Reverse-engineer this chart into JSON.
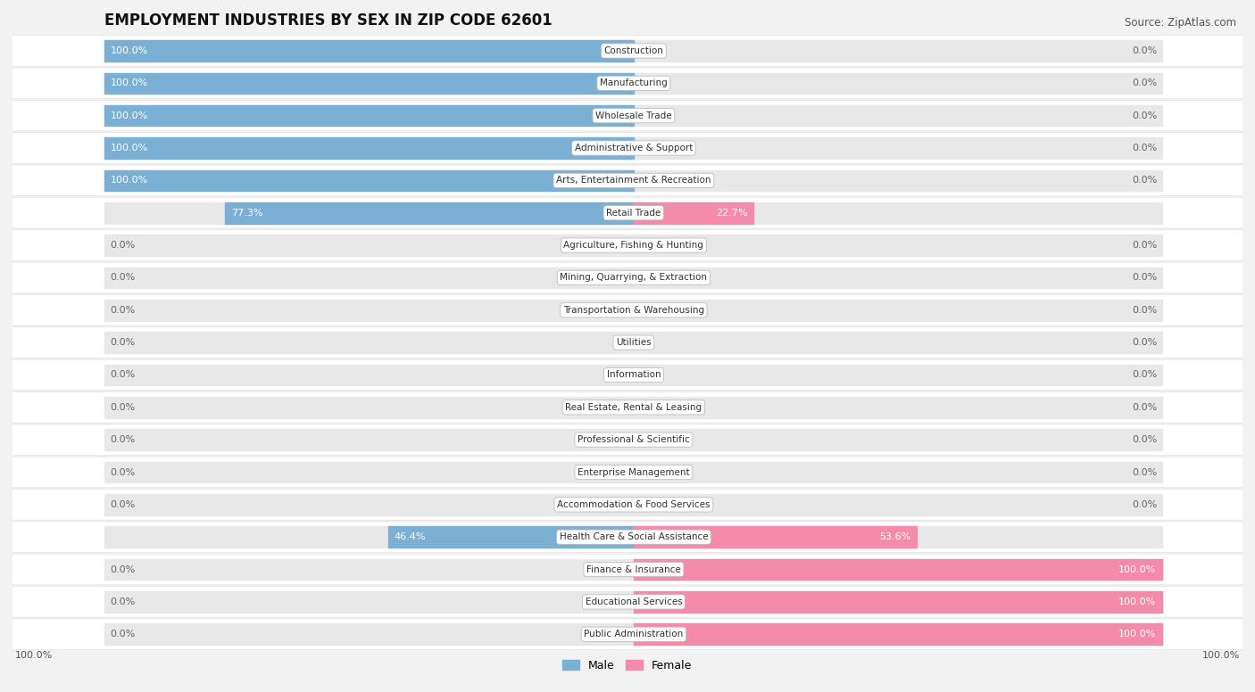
{
  "title": "EMPLOYMENT INDUSTRIES BY SEX IN ZIP CODE 62601",
  "source": "Source: ZipAtlas.com",
  "industries": [
    "Construction",
    "Manufacturing",
    "Wholesale Trade",
    "Administrative & Support",
    "Arts, Entertainment & Recreation",
    "Retail Trade",
    "Agriculture, Fishing & Hunting",
    "Mining, Quarrying, & Extraction",
    "Transportation & Warehousing",
    "Utilities",
    "Information",
    "Real Estate, Rental & Leasing",
    "Professional & Scientific",
    "Enterprise Management",
    "Accommodation & Food Services",
    "Health Care & Social Assistance",
    "Finance & Insurance",
    "Educational Services",
    "Public Administration"
  ],
  "male_pct": [
    100.0,
    100.0,
    100.0,
    100.0,
    100.0,
    77.3,
    0.0,
    0.0,
    0.0,
    0.0,
    0.0,
    0.0,
    0.0,
    0.0,
    0.0,
    46.4,
    0.0,
    0.0,
    0.0
  ],
  "female_pct": [
    0.0,
    0.0,
    0.0,
    0.0,
    0.0,
    22.7,
    0.0,
    0.0,
    0.0,
    0.0,
    0.0,
    0.0,
    0.0,
    0.0,
    0.0,
    53.6,
    100.0,
    100.0,
    100.0
  ],
  "male_color": "#7BAFD4",
  "female_color": "#F48BAB",
  "bg_color": "#F2F2F2",
  "row_even_color": "#FFFFFF",
  "row_odd_color": "#F8F8F8",
  "bar_bg_color": "#E8E8E8",
  "title_fontsize": 12,
  "source_fontsize": 8.5,
  "label_fontsize": 8.0,
  "industry_fontsize": 7.5
}
